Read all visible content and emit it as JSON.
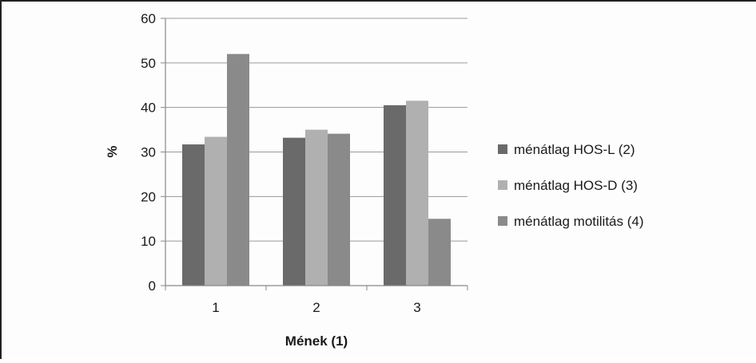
{
  "chart_data": {
    "type": "bar",
    "title": "",
    "xlabel": "Mének (1)",
    "ylabel": "%",
    "categories": [
      "1",
      "2",
      "3"
    ],
    "ylim": [
      0,
      60
    ],
    "yticks": [
      "0",
      "10",
      "20",
      "30",
      "40",
      "50",
      "60"
    ],
    "grid": true,
    "legend_position": "right",
    "series": [
      {
        "name": "ménátlag HOS-L (2)",
        "color": "#6a6a6a",
        "values": [
          31.7,
          33.2,
          40.5
        ]
      },
      {
        "name": "ménátlag HOS-D (3)",
        "color": "#b0b0b0",
        "values": [
          33.4,
          35.0,
          41.5
        ]
      },
      {
        "name": "ménátlag motilitás (4)",
        "color": "#8a8a8a",
        "values": [
          52.0,
          34.1,
          15.0
        ]
      }
    ]
  }
}
